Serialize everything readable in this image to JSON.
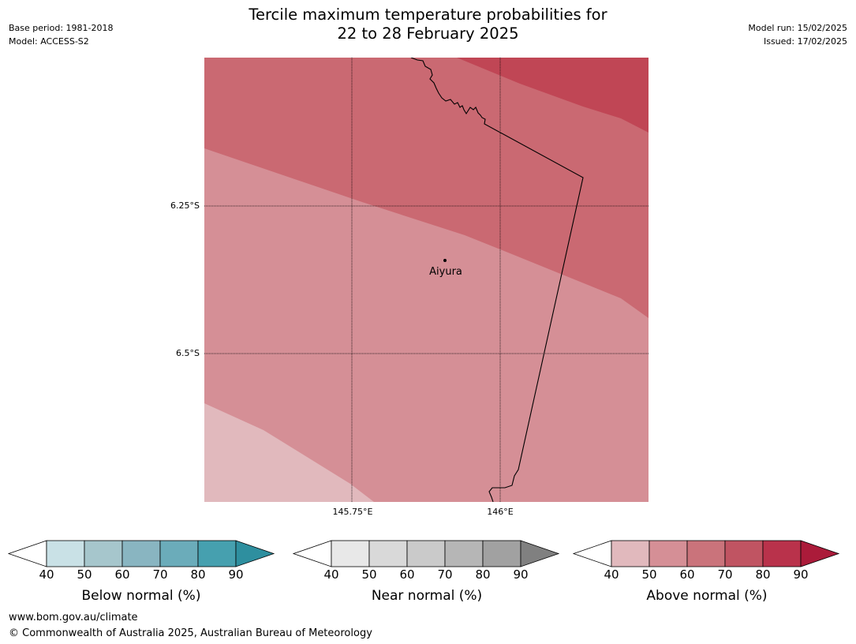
{
  "header": {
    "title_line1": "Tercile maximum temperature probabilities for",
    "title_line2": "22 to 28 February 2025",
    "base_period": "Base period: 1981-2018",
    "model": "Model: ACCESS-S2",
    "model_run": "Model run: 15/02/2025",
    "issued": "Issued: 17/02/2025"
  },
  "map": {
    "latitude_labels": [
      "6.25°S",
      "6.5°S"
    ],
    "longitude_labels": [
      "145.75°E",
      "146°E"
    ],
    "place": {
      "name": "Aiyura"
    },
    "colors": {
      "above_40_50": "#e1b9bd",
      "above_50_60": "#d58f96",
      "above_60_70": "#ca6972",
      "above_70_80": "#c04655"
    }
  },
  "colorbars": [
    {
      "title": "Below normal (%)",
      "ticks": [
        "40",
        "50",
        "60",
        "70",
        "80",
        "90"
      ],
      "colors": [
        "#c9e1e6",
        "#a6c6cc",
        "#89b5c1",
        "#6bacba",
        "#46a0af",
        "#2e8f9f"
      ]
    },
    {
      "title": "Near normal (%)",
      "ticks": [
        "40",
        "50",
        "60",
        "70",
        "80",
        "90"
      ],
      "colors": [
        "#e8e8e8",
        "#d9d9d9",
        "#cacaca",
        "#b6b6b6",
        "#a1a1a1",
        "#808080"
      ]
    },
    {
      "title": "Above normal (%)",
      "ticks": [
        "40",
        "50",
        "60",
        "70",
        "80",
        "90"
      ],
      "colors": [
        "#e1b9bd",
        "#d58f96",
        "#ca737b",
        "#c05462",
        "#b9324b",
        "#ab1b3a"
      ]
    }
  ],
  "footer": {
    "url": "www.bom.gov.au/climate",
    "copyright": "© Commonwealth of Australia 2025, Australian Bureau of Meteorology"
  }
}
